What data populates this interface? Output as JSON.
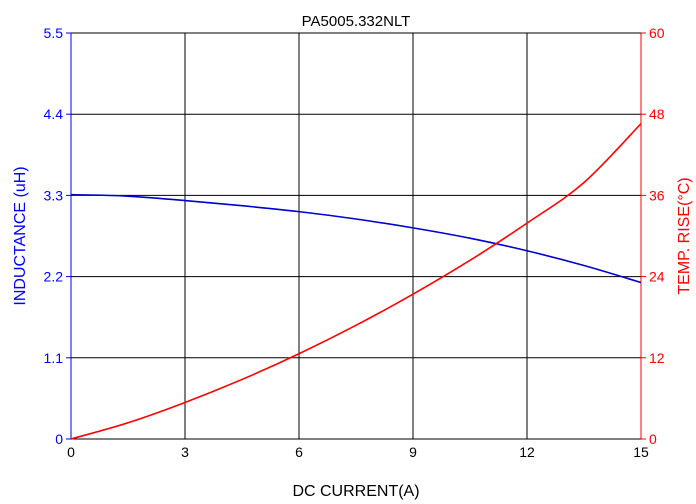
{
  "chart_data": {
    "type": "line",
    "title": "PA5005.332NLT",
    "xlabel": "DC CURRENT(A)",
    "ylabel_left": "INDUCTANCE (uH)",
    "ylabel_right": "TEMP. RISE(°C)",
    "xlim": [
      0,
      15
    ],
    "ylim_left": [
      0,
      5.5
    ],
    "ylim_right": [
      0,
      60
    ],
    "x_ticks": [
      "0",
      "3",
      "6",
      "9",
      "12",
      "15"
    ],
    "y_left_ticks": [
      "0",
      "1.1",
      "2.2",
      "3.3",
      "4.4",
      "5.5"
    ],
    "y_right_ticks": [
      "0",
      "12",
      "24",
      "36",
      "48",
      "60"
    ],
    "grid": true,
    "colors": {
      "inductance": "#0000cc",
      "temp": "#ff0000",
      "axis_left": "#0000ff",
      "axis_right": "#ff0000",
      "grid": "#000000"
    },
    "series": [
      {
        "axis": "left",
        "x": [
          0,
          1.5,
          3,
          4.5,
          6,
          7.5,
          9,
          10.5,
          12,
          13.5,
          15
        ],
        "values": [
          3.31,
          3.29,
          3.23,
          3.16,
          3.08,
          2.98,
          2.86,
          2.72,
          2.55,
          2.35,
          2.12
        ]
      },
      {
        "axis": "right",
        "x": [
          0,
          1.5,
          3,
          4.5,
          6,
          7.5,
          9,
          10.5,
          12,
          13.5,
          15
        ],
        "values": [
          0,
          2.4,
          5.4,
          8.8,
          12.6,
          16.8,
          21.4,
          26.4,
          31.9,
          37.9,
          46.6
        ]
      }
    ]
  }
}
